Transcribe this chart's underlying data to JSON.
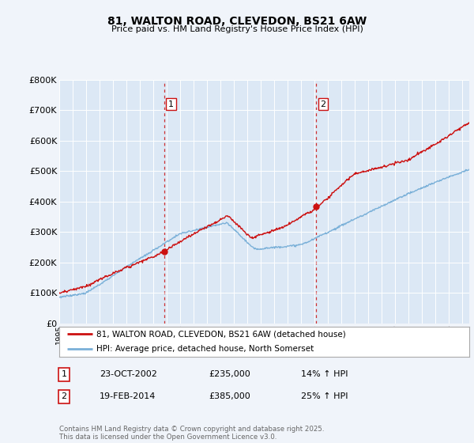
{
  "title": "81, WALTON ROAD, CLEVEDON, BS21 6AW",
  "subtitle": "Price paid vs. HM Land Registry's House Price Index (HPI)",
  "background_color": "#f0f4fa",
  "plot_bg_color": "#dce8f5",
  "ylim": [
    0,
    800000
  ],
  "yticks": [
    0,
    100000,
    200000,
    300000,
    400000,
    500000,
    600000,
    700000,
    800000
  ],
  "ytick_labels": [
    "£0",
    "£100K",
    "£200K",
    "£300K",
    "£400K",
    "£500K",
    "£600K",
    "£700K",
    "£800K"
  ],
  "sale1_date": 2002.81,
  "sale1_price": 235000,
  "sale1_label": "1",
  "sale1_annotation": "23-OCT-2002",
  "sale1_pct": "14%",
  "sale2_date": 2014.12,
  "sale2_price": 385000,
  "sale2_label": "2",
  "sale2_annotation": "19-FEB-2014",
  "sale2_pct": "25%",
  "red_line_color": "#cc1111",
  "blue_line_color": "#7ab0d8",
  "dashed_line_color": "#cc1111",
  "legend_label1": "81, WALTON ROAD, CLEVEDON, BS21 6AW (detached house)",
  "legend_label2": "HPI: Average price, detached house, North Somerset",
  "footer": "Contains HM Land Registry data © Crown copyright and database right 2025.\nThis data is licensed under the Open Government Licence v3.0.",
  "xstart": 1995,
  "xend": 2025.5
}
